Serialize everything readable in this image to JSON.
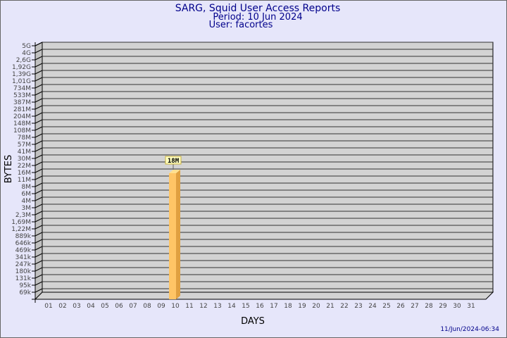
{
  "chart_data": {
    "type": "bar",
    "title": "SARG, Squid User Access Reports",
    "subtitle_period": "Period: 10 Jun 2024",
    "subtitle_user": "User: facortes",
    "xlabel": "DAYS",
    "ylabel": "BYTES",
    "footer": "11/Jun/2024-06:34",
    "y_scale": "log",
    "y_tick_labels": [
      "5G",
      "4G",
      "2,6G",
      "1,92G",
      "1,39G",
      "1,01G",
      "734M",
      "533M",
      "387M",
      "281M",
      "204M",
      "148M",
      "108M",
      "78M",
      "57M",
      "41M",
      "30M",
      "22M",
      "16M",
      "11M",
      "8M",
      "6M",
      "4M",
      "3M",
      "2,3M",
      "1,69M",
      "1,22M",
      "889k",
      "646k",
      "469k",
      "341k",
      "247k",
      "180k",
      "131k",
      "95k",
      "69k"
    ],
    "categories": [
      "01",
      "02",
      "03",
      "04",
      "05",
      "06",
      "07",
      "08",
      "09",
      "10",
      "11",
      "12",
      "13",
      "14",
      "15",
      "16",
      "17",
      "18",
      "19",
      "20",
      "21",
      "22",
      "23",
      "24",
      "25",
      "26",
      "27",
      "28",
      "29",
      "30",
      "31"
    ],
    "values": [
      0,
      0,
      0,
      0,
      0,
      0,
      0,
      0,
      0,
      18,
      0,
      0,
      0,
      0,
      0,
      0,
      0,
      0,
      0,
      0,
      0,
      0,
      0,
      0,
      0,
      0,
      0,
      0,
      0,
      0,
      0
    ],
    "value_unit": "M",
    "data_labels": {
      "10": "18M"
    },
    "grid": true,
    "colors": {
      "bar": "#ffc566",
      "bar_side": "#e0a040",
      "bar_top": "#ffe090",
      "plot_bg": "#d3d3d3",
      "wall": "#c0c0c0",
      "title": "#00008b",
      "background": "#e6e6fa"
    }
  }
}
